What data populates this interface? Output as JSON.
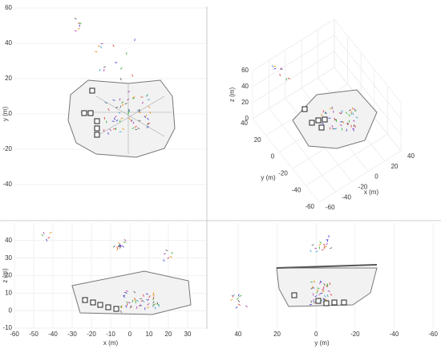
{
  "chart_data": [
    {
      "type": "scatter",
      "xlim": [
        -60,
        40
      ],
      "ylim": [
        -60,
        60
      ],
      "yticks": [
        -40,
        -20,
        0,
        20,
        40,
        60
      ],
      "y_label": "y (m)",
      "grid": true
    },
    {
      "type": "scatter3d",
      "x_label": "x (m)",
      "y_label": "y (m)",
      "z_label": "z (m)",
      "xticks": [
        -60,
        -40,
        -20,
        0,
        20,
        40
      ],
      "yticks": [
        -60,
        -40,
        -20,
        0,
        20,
        40
      ],
      "zticks": [
        0,
        20,
        40,
        60
      ],
      "grid": true
    },
    {
      "type": "scatter",
      "xlim": [
        -60,
        40
      ],
      "ylim": [
        -10,
        50
      ],
      "xticks": [
        -60,
        -50,
        -40,
        -30,
        -20,
        -10,
        0,
        10,
        20,
        30
      ],
      "yticks": [
        -10,
        0,
        10,
        20,
        30,
        40
      ],
      "x_label": "x (m)",
      "y_label": "z (m)",
      "grid": true
    },
    {
      "type": "scatter",
      "xlim": [
        56,
        -62
      ],
      "ylim": [
        -10,
        50
      ],
      "xticks": [
        40,
        20,
        0,
        -20,
        -40,
        -60
      ],
      "x_label": "y (m)",
      "grid": true
    }
  ]
}
